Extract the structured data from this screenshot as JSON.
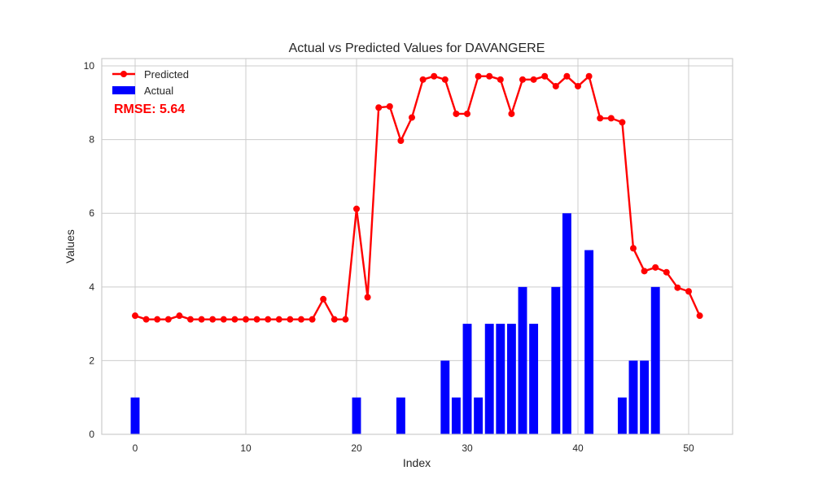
{
  "chart_data": {
    "type": "bar+line",
    "title": "Actual vs Predicted Values for DAVANGERE",
    "xlabel": "Index",
    "ylabel": "Values",
    "xlim": [
      -3,
      54
    ],
    "ylim": [
      0,
      10.2
    ],
    "x_ticks": [
      0,
      10,
      20,
      30,
      40,
      50
    ],
    "y_ticks": [
      0,
      2,
      4,
      6,
      8,
      10
    ],
    "grid": true,
    "legend_position": "top-left",
    "colors": {
      "predicted": "#ff0000",
      "actual": "#0000ff",
      "rmse": "#ff0000",
      "grid": "#cccccc",
      "frame": "#cccccc"
    },
    "series": [
      {
        "name": "Predicted",
        "kind": "line",
        "values": [
          3.22,
          3.12,
          3.12,
          3.12,
          3.22,
          3.12,
          3.12,
          3.12,
          3.12,
          3.12,
          3.12,
          3.12,
          3.12,
          3.12,
          3.12,
          3.12,
          3.12,
          3.67,
          3.12,
          3.12,
          6.12,
          3.72,
          8.87,
          8.9,
          7.97,
          8.6,
          9.63,
          9.72,
          9.63,
          8.7,
          8.7,
          9.72,
          9.72,
          9.63,
          8.7,
          9.63,
          9.63,
          9.72,
          9.45,
          9.72,
          9.45,
          9.72,
          8.58,
          8.58,
          8.47,
          5.05,
          4.43,
          4.53,
          4.4,
          3.98,
          3.88,
          3.22
        ]
      },
      {
        "name": "Actual",
        "kind": "bar",
        "values": [
          1,
          0,
          0,
          0,
          0,
          0,
          0,
          0,
          0,
          0,
          0,
          0,
          0,
          0,
          0,
          0,
          0,
          0,
          0,
          0,
          1,
          0,
          0,
          0,
          1,
          0,
          0,
          0,
          2,
          1,
          3,
          1,
          3,
          3,
          3,
          4,
          3,
          0,
          4,
          6,
          0,
          5,
          0,
          0,
          1,
          2,
          2,
          4,
          0,
          0,
          0,
          0
        ]
      }
    ],
    "annotation": "RMSE: 5.64"
  }
}
